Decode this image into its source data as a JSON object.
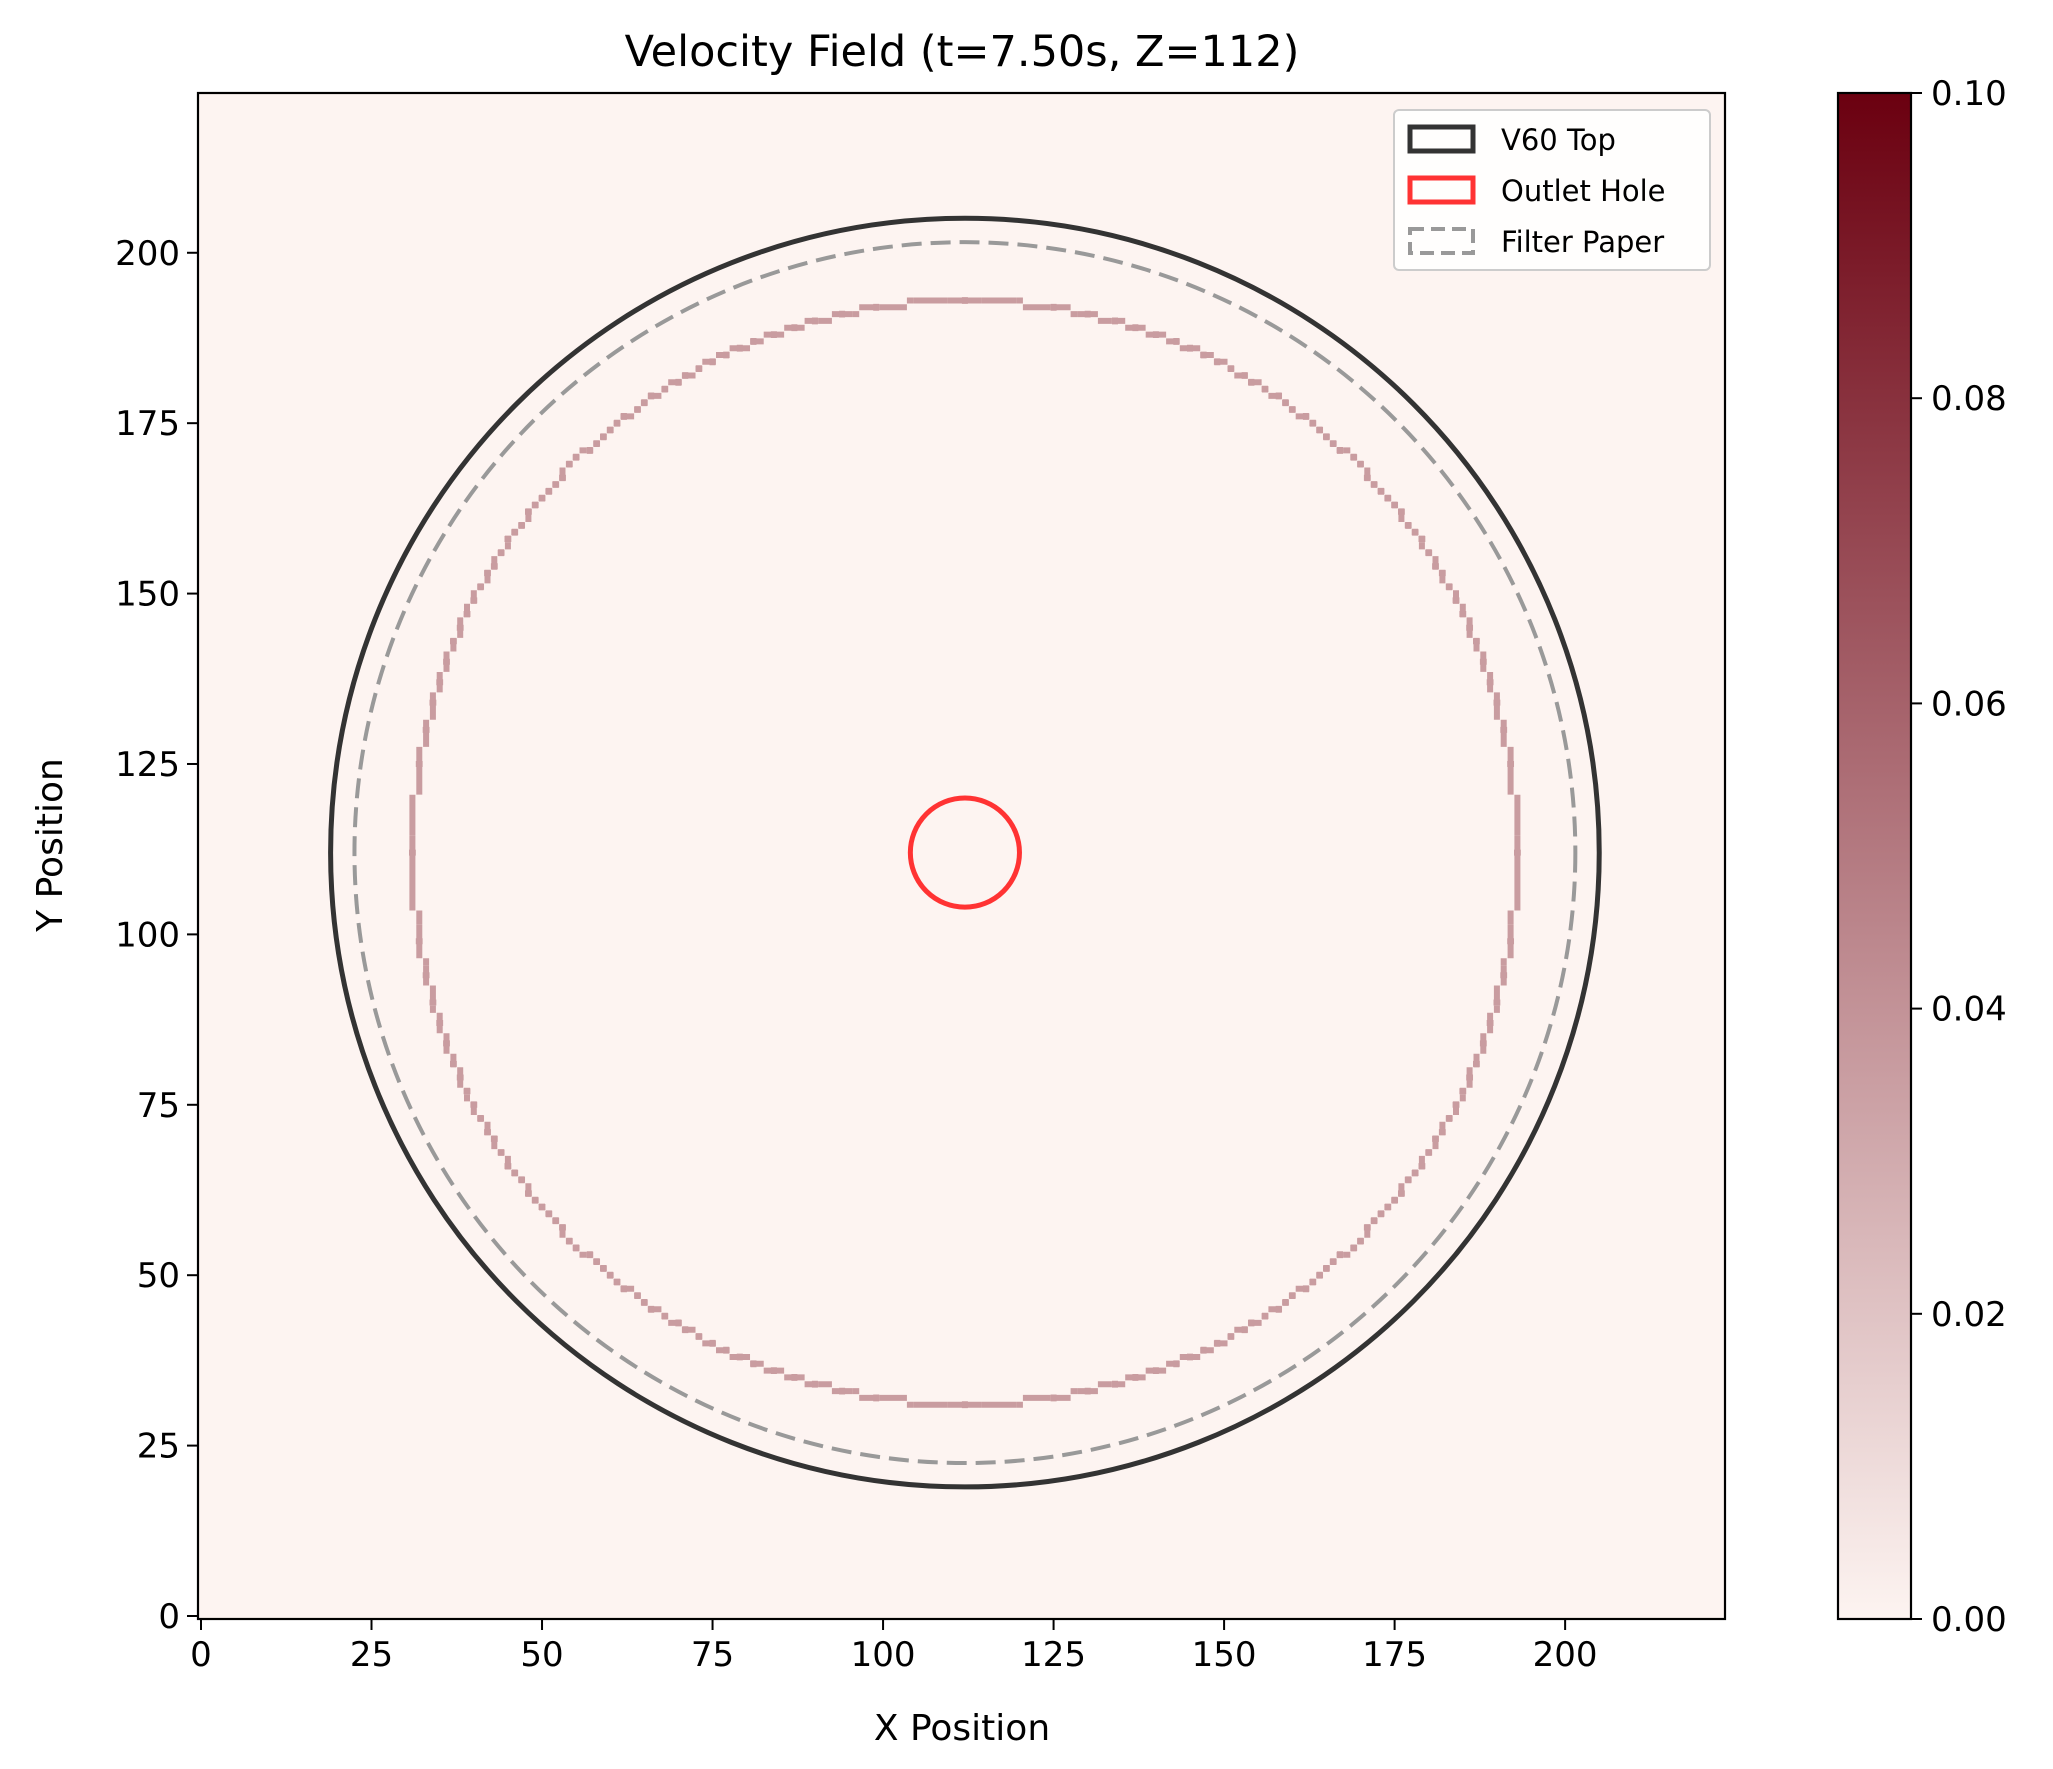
{
  "chart_data": {
    "type": "heatmap",
    "title": "Velocity Field (t=7.50s, Z=112)",
    "xlabel": "X Position",
    "ylabel": "Y Position",
    "xlim": [
      0,
      223
    ],
    "ylim": [
      0,
      223
    ],
    "x_ticks": [
      0,
      25,
      50,
      75,
      100,
      125,
      150,
      175,
      200
    ],
    "y_ticks": [
      0,
      25,
      50,
      75,
      100,
      125,
      150,
      175,
      200
    ],
    "grid": false,
    "background_value": 0.0,
    "colorbar": {
      "colormap": "light-to-dark-red",
      "color_low": "#fdf4f1",
      "color_high": "#6b0010",
      "range": [
        0.0,
        0.1
      ],
      "ticks": [
        "0.00",
        "0.02",
        "0.04",
        "0.06",
        "0.08",
        "0.10"
      ]
    },
    "velocity_ring": {
      "center": [
        112,
        112
      ],
      "radius_x": 81,
      "radius_y": 81,
      "value": 0.04
    },
    "circles": [
      {
        "name": "V60 Top",
        "center": [
          112,
          112
        ],
        "radius": 93,
        "color": "#333333",
        "style": "solid"
      },
      {
        "name": "Outlet Hole",
        "center": [
          112,
          112
        ],
        "radius": 8,
        "color": "#ff3333",
        "style": "solid"
      },
      {
        "name": "Filter Paper",
        "center": [
          112,
          112
        ],
        "radius": 89.5,
        "color": "#999999",
        "style": "dashed"
      }
    ],
    "legend": {
      "position": "top-right",
      "entries": [
        "V60 Top",
        "Outlet Hole",
        "Filter Paper"
      ]
    }
  }
}
